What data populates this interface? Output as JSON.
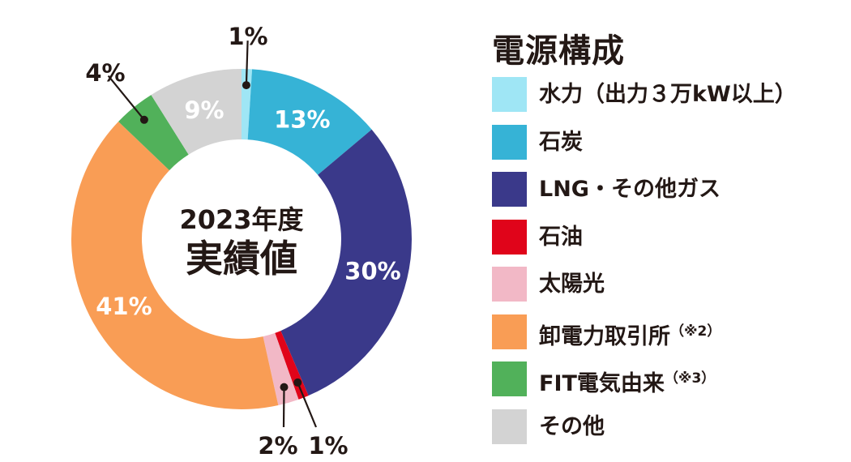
{
  "chart_data": {
    "type": "donut",
    "center_label": {
      "line1": "2023年度",
      "line2": "実績値"
    },
    "legend_title": "電源構成",
    "slices": [
      {
        "name": "水力",
        "note": "（出力３万kW以上）",
        "value": 1,
        "label": "1%",
        "color": "#9fe6f5",
        "label_position": "outside"
      },
      {
        "name": "石炭",
        "note": "",
        "value": 13,
        "label": "13%",
        "color": "#36b3d6",
        "label_position": "inside"
      },
      {
        "name": "LNG・その他ガス",
        "note": "",
        "value": 30,
        "label": "30%",
        "color": "#3a398a",
        "label_position": "inside"
      },
      {
        "name": "石油",
        "note": "",
        "value": 1,
        "label": "1%",
        "color": "#e0041a",
        "label_position": "outside"
      },
      {
        "name": "太陽光",
        "note": "",
        "value": 2,
        "label": "2%",
        "color": "#f2b8c6",
        "label_position": "outside"
      },
      {
        "name": "卸電力取引所",
        "note": "（※2）",
        "value": 41,
        "label": "41%",
        "color": "#f99d55",
        "label_position": "inside"
      },
      {
        "name": "FIT電気由来",
        "note": "（※3）",
        "value": 4,
        "label": "4%",
        "color": "#51b15a",
        "label_position": "outside"
      },
      {
        "name": "その他",
        "note": "",
        "value": 9,
        "label": "9%",
        "color": "#d3d3d3",
        "label_position": "inside"
      }
    ]
  }
}
